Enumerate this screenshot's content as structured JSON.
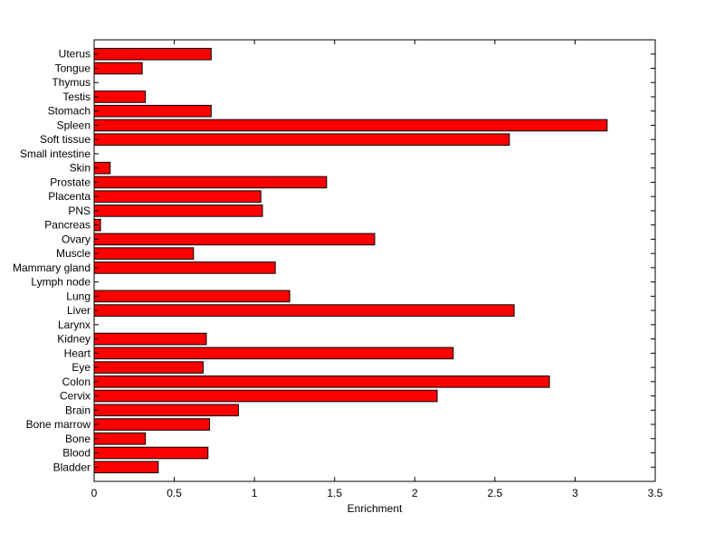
{
  "chart_data": {
    "type": "bar",
    "orientation": "horizontal",
    "categories": [
      "Uterus",
      "Tongue",
      "Thymus",
      "Testis",
      "Stomach",
      "Spleen",
      "Soft tissue",
      "Small intestine",
      "Skin",
      "Prostate",
      "Placenta",
      "PNS",
      "Pancreas",
      "Ovary",
      "Muscle",
      "Mammary gland",
      "Lymph node",
      "Lung",
      "Liver",
      "Larynx",
      "Kidney",
      "Heart",
      "Eye",
      "Colon",
      "Cervix",
      "Brain",
      "Bone marrow",
      "Bone",
      "Blood",
      "Bladder"
    ],
    "values": [
      0.73,
      0.3,
      0,
      0.32,
      0.73,
      3.2,
      2.59,
      0,
      0.1,
      1.45,
      1.04,
      1.05,
      0.04,
      1.75,
      0.62,
      1.13,
      0,
      1.22,
      2.62,
      0,
      0.7,
      2.24,
      0.68,
      2.84,
      2.14,
      0.9,
      0.72,
      0.32,
      0.71,
      0.4
    ],
    "xlabel": "Enrichment",
    "ylabel": "",
    "title": "",
    "xlim": [
      0,
      3.5
    ],
    "xticks": [
      0,
      0.5,
      1,
      1.5,
      2,
      2.5,
      3,
      3.5
    ],
    "xtick_labels": [
      "0",
      "0.5",
      "1",
      "1.5",
      "2",
      "2.5",
      "3",
      "3.5"
    ],
    "grid": false,
    "bar_color": "#ff0000",
    "bar_edge_color": "#000000"
  }
}
